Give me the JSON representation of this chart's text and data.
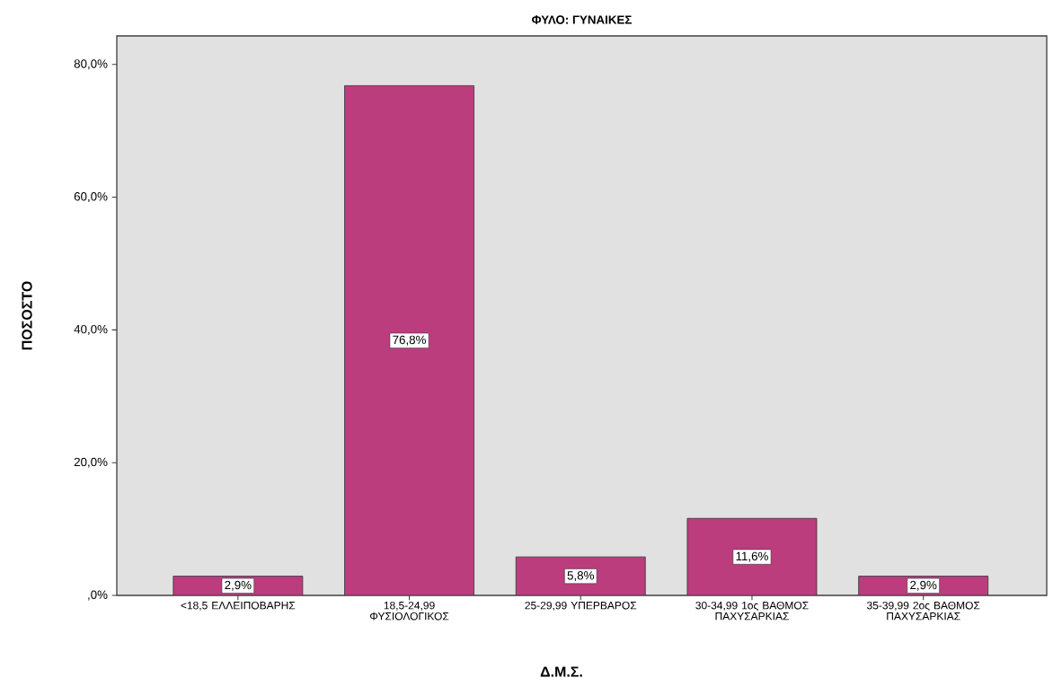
{
  "chart_data": {
    "type": "bar",
    "title": "ΦΥΛΟ: ΓΥΝΑΙΚΕΣ",
    "xlabel": "Δ.Μ.Σ.",
    "ylabel": "ΠΟΣΟΣΤΟ",
    "categories": [
      "<18,5 ΕΛΛΕΙΠΟΒΑΡΗΣ",
      "18,5-24,99 ΦΥΣΙΟΛΟΓΙΚΟΣ",
      "25-29,99 ΥΠΕΡΒΑΡΟΣ",
      "30-34,99 1ος ΒΑΘΜΟΣ ΠΑΧΥΣΑΡΚΙΑΣ",
      "35-39,99 2ος ΒΑΘΜΟΣ ΠΑΧΥΣΑΡΚΙΑΣ"
    ],
    "values": [
      2.9,
      76.8,
      5.8,
      11.6,
      2.9
    ],
    "value_labels": [
      "2,9%",
      "76,8%",
      "5,8%",
      "11,6%",
      "2,9%"
    ],
    "color": "#bb3d7e",
    "ylim": [
      0,
      84.3
    ],
    "yticks": [
      {
        "value": 0,
        "label": ",0%"
      },
      {
        "value": 20,
        "label": "20,0%"
      },
      {
        "value": 40,
        "label": "40,0%"
      },
      {
        "value": 60,
        "label": "60,0%"
      },
      {
        "value": 80,
        "label": "80,0%"
      }
    ],
    "grid": false
  }
}
